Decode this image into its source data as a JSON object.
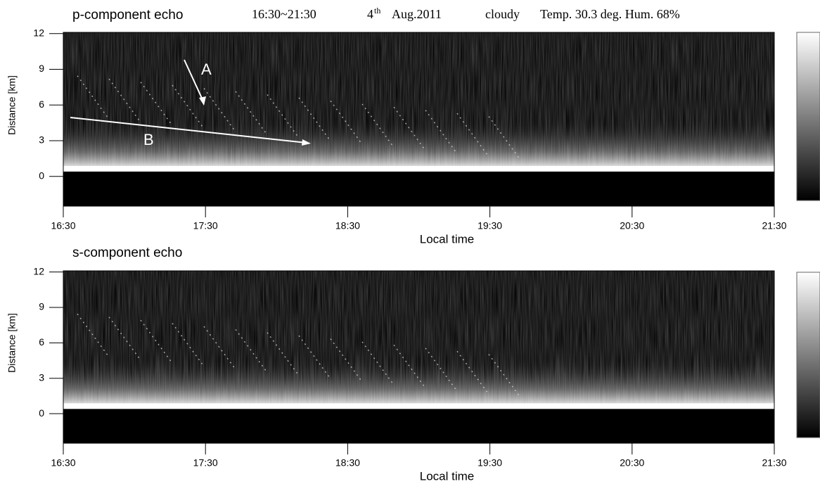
{
  "header": [
    "16:30~21:30",
    "4",
    "th",
    "Aug.2011",
    "cloudy",
    "Temp. 30.3 deg. Hum. 68%"
  ],
  "chart_data": [
    {
      "type": "heatmap",
      "title": "p-component echo",
      "x_label": "Local time",
      "y_label": "Distance [km]",
      "xlim": [
        16.5,
        21.5
      ],
      "ylim": [
        -2.5,
        12.1
      ],
      "xticks": [
        {
          "value": 16.5,
          "label": "16:30"
        },
        {
          "value": 17.5,
          "label": "17:30"
        },
        {
          "value": 18.5,
          "label": "18:30"
        },
        {
          "value": 19.5,
          "label": "19:30"
        },
        {
          "value": 20.5,
          "label": "20:30"
        },
        {
          "value": 21.5,
          "label": "21:30"
        }
      ],
      "yticks": [
        0,
        3,
        6,
        9,
        12
      ],
      "annotations": [
        "A",
        "B"
      ]
    },
    {
      "type": "heatmap",
      "title": "s-component echo",
      "x_label": "Local time",
      "y_label": "Distance [km]",
      "xlim": [
        16.5,
        21.5
      ],
      "ylim": [
        -2.5,
        12.1
      ],
      "xticks": [
        {
          "value": 16.5,
          "label": "16:30"
        },
        {
          "value": 17.5,
          "label": "17:30"
        },
        {
          "value": 18.5,
          "label": "18:30"
        },
        {
          "value": 19.5,
          "label": "19:30"
        },
        {
          "value": 20.5,
          "label": "20:30"
        },
        {
          "value": 21.5,
          "label": "21:30"
        }
      ],
      "yticks": [
        0,
        3,
        6,
        9,
        12
      ]
    }
  ]
}
